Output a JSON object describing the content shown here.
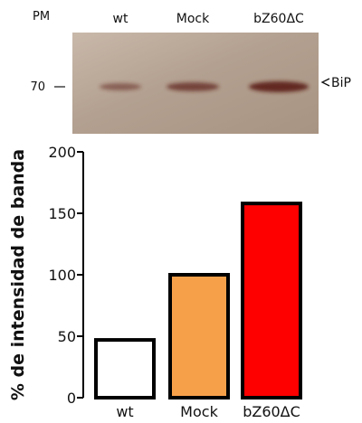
{
  "blot": {
    "marker_header": "PM",
    "marker_value": "70",
    "lanes": [
      "wt",
      "Mock",
      "bZ60ΔC"
    ],
    "band_label": "BiP",
    "band_intensity": [
      47,
      100,
      158
    ],
    "colors": {
      "membrane": "#b9a797",
      "band": "#5a1a12"
    }
  },
  "chart_data": {
    "type": "bar",
    "categories": [
      "wt",
      "Mock",
      "bZ60ΔC"
    ],
    "values": [
      47,
      100,
      158
    ],
    "title": "",
    "xlabel": "",
    "ylabel": "% de intensidad de banda",
    "ylim": [
      0,
      200
    ],
    "yticks": [
      0,
      50,
      100,
      150,
      200
    ],
    "colors": [
      "#ffffff",
      "#f7a04a",
      "#ff0000"
    ],
    "edge_color": "#000000",
    "grid": false,
    "legend": "none"
  }
}
